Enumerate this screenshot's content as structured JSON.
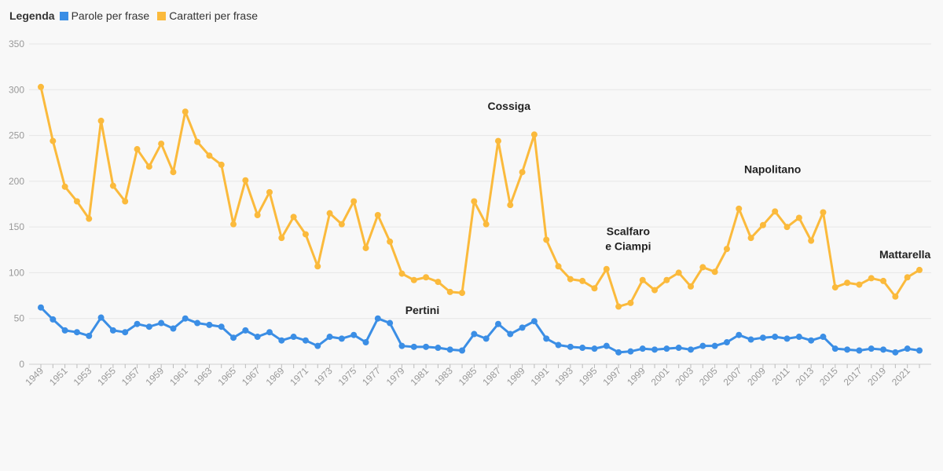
{
  "legend": {
    "title": "Legenda",
    "items": [
      {
        "label": "Parole per frase",
        "color": "#3b8ee5"
      },
      {
        "label": "Caratteri per frase",
        "color": "#fbba3c"
      }
    ]
  },
  "chart_data": {
    "type": "line",
    "x": [
      1949,
      1950,
      1951,
      1952,
      1953,
      1954,
      1955,
      1956,
      1957,
      1958,
      1959,
      1960,
      1961,
      1962,
      1963,
      1964,
      1965,
      1966,
      1967,
      1968,
      1969,
      1970,
      1971,
      1972,
      1973,
      1974,
      1975,
      1976,
      1977,
      1978,
      1979,
      1980,
      1981,
      1982,
      1983,
      1984,
      1985,
      1986,
      1987,
      1988,
      1989,
      1990,
      1991,
      1992,
      1993,
      1994,
      1995,
      1996,
      1997,
      1998,
      1999,
      2000,
      2001,
      2002,
      2003,
      2004,
      2005,
      2006,
      2007,
      2008,
      2009,
      2010,
      2011,
      2012,
      2013,
      2014,
      2015,
      2016,
      2017,
      2018,
      2019,
      2020,
      2021,
      2022
    ],
    "x_tick_labels": [
      "1949",
      "1951",
      "1953",
      "1955",
      "1957",
      "1959",
      "1961",
      "1963",
      "1965",
      "1967",
      "1969",
      "1971",
      "1973",
      "1975",
      "1977",
      "1979",
      "1981",
      "1983",
      "1985",
      "1987",
      "1989",
      "1991",
      "1993",
      "1995",
      "1997",
      "1999",
      "2001",
      "2003",
      "2005",
      "2007",
      "2009",
      "2011",
      "2013",
      "2015",
      "2017",
      "2019",
      "2021"
    ],
    "y_ticks": [
      0,
      50,
      100,
      150,
      200,
      250,
      300,
      350
    ],
    "ylim": [
      0,
      350
    ],
    "grid": true,
    "legend_position": "top-left",
    "series": [
      {
        "name": "Parole per frase",
        "color": "#3b8ee5",
        "values": [
          62,
          49,
          37,
          35,
          31,
          51,
          37,
          35,
          44,
          41,
          45,
          39,
          50,
          45,
          43,
          41,
          29,
          37,
          30,
          35,
          26,
          30,
          26,
          20,
          30,
          28,
          32,
          24,
          50,
          45,
          20,
          19,
          19,
          18,
          16,
          15,
          33,
          28,
          44,
          33,
          40,
          47,
          28,
          21,
          19,
          18,
          17,
          20,
          13,
          14,
          17,
          16,
          17,
          18,
          16,
          20,
          20,
          24,
          32,
          27,
          29,
          30,
          28,
          30,
          26,
          30,
          17,
          16,
          15,
          17,
          16,
          13,
          17,
          15
        ]
      },
      {
        "name": "Caratteri per frase",
        "color": "#fbba3c",
        "values": [
          303,
          244,
          194,
          178,
          159,
          266,
          195,
          178,
          235,
          216,
          241,
          210,
          276,
          243,
          228,
          218,
          153,
          201,
          163,
          188,
          138,
          161,
          142,
          107,
          165,
          153,
          178,
          127,
          163,
          134,
          99,
          92,
          95,
          90,
          79,
          78,
          178,
          153,
          244,
          174,
          210,
          251,
          136,
          107,
          93,
          91,
          83,
          104,
          63,
          67,
          92,
          81,
          92,
          100,
          85,
          106,
          101,
          126,
          170,
          138,
          152,
          167,
          150,
          160,
          135,
          166,
          84,
          89,
          87,
          94,
          91,
          74,
          95,
          103
        ]
      }
    ],
    "annotations": [
      {
        "lines": [
          "Cossiga"
        ],
        "x": 1987.9,
        "y": 278
      },
      {
        "lines": [
          "Pertini"
        ],
        "x": 1980.7,
        "y": 55
      },
      {
        "lines": [
          "Scalfaro",
          "e Ciampi"
        ],
        "x": 1997.8,
        "y": 141
      },
      {
        "lines": [
          "Napolitano"
        ],
        "x": 2009.8,
        "y": 209
      },
      {
        "lines": [
          "Mattarella"
        ],
        "x": 2020.8,
        "y": 116
      }
    ]
  }
}
